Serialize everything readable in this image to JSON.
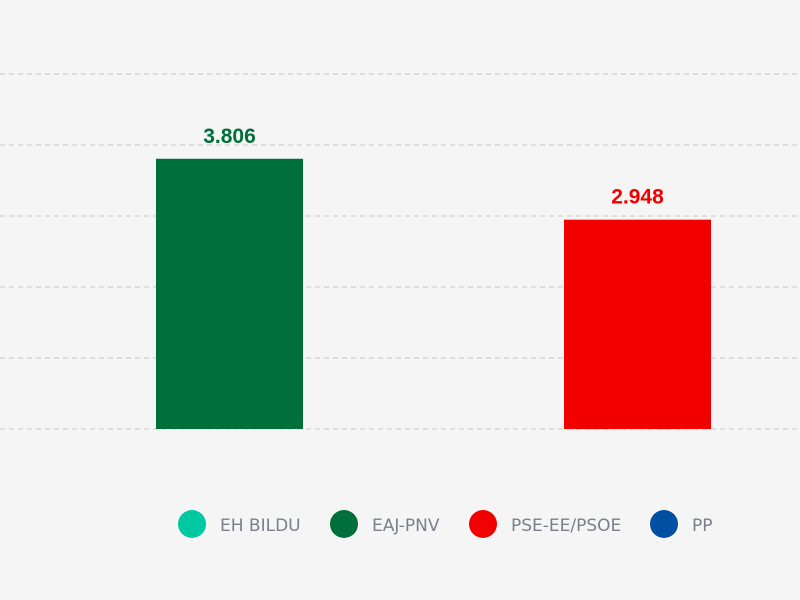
{
  "chart_data": {
    "type": "bar",
    "title": "",
    "xlabel": "",
    "ylabel": "",
    "ylim": [
      0,
      5
    ],
    "grid": true,
    "legend_position": "bottom",
    "categories": [
      "EH BILDU",
      "EAJ-PNV",
      "PSE-EE/PSOE",
      "PP"
    ],
    "bars": [
      {
        "category": "EAJ-PNV",
        "value": 3.806,
        "label": "3.806"
      },
      {
        "category": "PSE-EE/PSOE",
        "value": 2.948,
        "label": "2.948"
      }
    ],
    "colors": {
      "EH BILDU": "#00c8a0",
      "EAJ-PNV": "#006f3a",
      "PSE-EE/PSOE": "#f20000",
      "PP": "#004fa3"
    }
  },
  "legend": {
    "items": [
      {
        "label": "EH BILDU",
        "color": "#00c8a0"
      },
      {
        "label": "EAJ-PNV",
        "color": "#006f3a"
      },
      {
        "label": "PSE-EE/PSOE",
        "color": "#f20000"
      },
      {
        "label": "PP",
        "color": "#004fa3"
      }
    ]
  }
}
